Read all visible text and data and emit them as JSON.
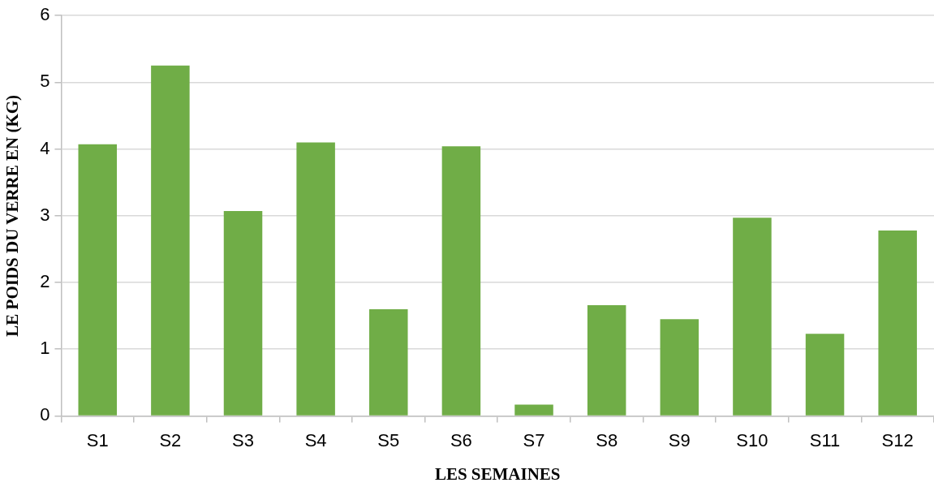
{
  "chart_data": {
    "type": "bar",
    "xlabel": "LES SEMAINES",
    "ylabel": "LE POIDS DU VERRE EN (KG)",
    "categories": [
      "S1",
      "S2",
      "S3",
      "S4",
      "S5",
      "S6",
      "S7",
      "S8",
      "S9",
      "S10",
      "S11",
      "S12"
    ],
    "values": [
      4.07,
      5.25,
      3.07,
      4.1,
      1.6,
      4.04,
      0.17,
      1.66,
      1.45,
      2.97,
      1.23,
      2.78
    ],
    "color": "#70ad47",
    "ylim": [
      0,
      6
    ],
    "yticks": [
      0,
      1,
      2,
      3,
      4,
      5,
      6
    ],
    "grid": "y",
    "legend": false
  }
}
